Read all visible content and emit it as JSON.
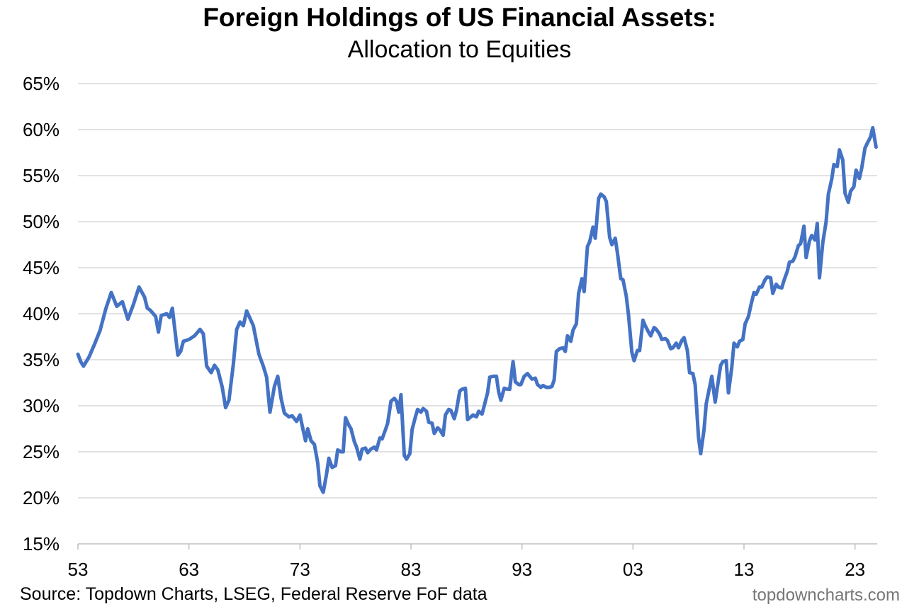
{
  "chart_data": {
    "type": "line",
    "title": "Foreign Holdings of US Financial Assets:",
    "subtitle": "Allocation to Equities",
    "xlabel": "",
    "ylabel": "",
    "ylim": [
      15,
      65
    ],
    "xlim": [
      1953,
      2025
    ],
    "yticks": [
      15,
      20,
      25,
      30,
      35,
      40,
      45,
      50,
      55,
      60,
      65
    ],
    "ytick_labels": [
      "15%",
      "20%",
      "25%",
      "30%",
      "35%",
      "40%",
      "45%",
      "50%",
      "55%",
      "60%",
      "65%"
    ],
    "xticks": [
      1953,
      1963,
      1973,
      1983,
      1993,
      2003,
      2013,
      2023
    ],
    "xtick_labels": [
      "53",
      "63",
      "73",
      "83",
      "93",
      "03",
      "13",
      "23"
    ],
    "grid": true,
    "series": [
      {
        "name": "Allocation to Equities",
        "color": "#4472C4",
        "points": [
          [
            1953.0,
            35.6
          ],
          [
            1953.25,
            34.8
          ],
          [
            1953.5,
            34.3
          ],
          [
            1954.0,
            35.3
          ],
          [
            1954.5,
            36.7
          ],
          [
            1955.0,
            38.2
          ],
          [
            1955.5,
            40.5
          ],
          [
            1956.0,
            42.3
          ],
          [
            1956.5,
            40.8
          ],
          [
            1957.0,
            41.3
          ],
          [
            1957.5,
            39.4
          ],
          [
            1958.0,
            41.0
          ],
          [
            1958.5,
            42.9
          ],
          [
            1959.0,
            41.8
          ],
          [
            1959.25,
            40.6
          ],
          [
            1959.5,
            40.4
          ],
          [
            1960.0,
            39.7
          ],
          [
            1960.25,
            38.0
          ],
          [
            1960.5,
            39.8
          ],
          [
            1961.0,
            40.0
          ],
          [
            1961.25,
            39.6
          ],
          [
            1961.5,
            40.6
          ],
          [
            1962.0,
            35.5
          ],
          [
            1962.25,
            35.9
          ],
          [
            1962.5,
            37.0
          ],
          [
            1963.0,
            37.2
          ],
          [
            1963.5,
            37.6
          ],
          [
            1964.0,
            38.3
          ],
          [
            1964.3,
            37.8
          ],
          [
            1964.6,
            34.3
          ],
          [
            1965.0,
            33.6
          ],
          [
            1965.3,
            34.4
          ],
          [
            1965.6,
            33.9
          ],
          [
            1966.0,
            32.0
          ],
          [
            1966.3,
            29.8
          ],
          [
            1966.6,
            30.6
          ],
          [
            1967.0,
            34.5
          ],
          [
            1967.3,
            38.3
          ],
          [
            1967.6,
            39.1
          ],
          [
            1967.9,
            38.7
          ],
          [
            1968.2,
            40.3
          ],
          [
            1968.5,
            39.5
          ],
          [
            1968.8,
            38.7
          ],
          [
            1969.3,
            35.6
          ],
          [
            1969.7,
            34.3
          ],
          [
            1970.0,
            33.1
          ],
          [
            1970.3,
            29.3
          ],
          [
            1970.7,
            32.1
          ],
          [
            1971.0,
            33.2
          ],
          [
            1971.3,
            30.8
          ],
          [
            1971.6,
            29.2
          ],
          [
            1972.0,
            28.8
          ],
          [
            1972.3,
            28.9
          ],
          [
            1972.7,
            28.3
          ],
          [
            1973.0,
            29.0
          ],
          [
            1973.3,
            27.3
          ],
          [
            1973.5,
            26.2
          ],
          [
            1973.7,
            27.5
          ],
          [
            1974.0,
            26.2
          ],
          [
            1974.3,
            25.8
          ],
          [
            1974.6,
            23.8
          ],
          [
            1974.8,
            21.3
          ],
          [
            1975.1,
            20.6
          ],
          [
            1975.4,
            22.6
          ],
          [
            1975.6,
            24.3
          ],
          [
            1975.9,
            23.3
          ],
          [
            1976.2,
            23.5
          ],
          [
            1976.4,
            25.2
          ],
          [
            1976.7,
            25.0
          ],
          [
            1976.9,
            25.0
          ],
          [
            1977.1,
            28.7
          ],
          [
            1977.4,
            27.9
          ],
          [
            1977.6,
            27.5
          ],
          [
            1977.9,
            26.1
          ],
          [
            1978.1,
            25.5
          ],
          [
            1978.4,
            24.2
          ],
          [
            1978.6,
            25.3
          ],
          [
            1978.9,
            25.4
          ],
          [
            1979.1,
            24.9
          ],
          [
            1979.4,
            25.3
          ],
          [
            1979.7,
            25.5
          ],
          [
            1979.9,
            25.2
          ],
          [
            1980.2,
            26.5
          ],
          [
            1980.4,
            26.4
          ],
          [
            1980.7,
            27.4
          ],
          [
            1980.9,
            28.1
          ],
          [
            1981.2,
            30.5
          ],
          [
            1981.5,
            30.8
          ],
          [
            1981.7,
            30.5
          ],
          [
            1981.9,
            29.3
          ],
          [
            1982.1,
            31.2
          ],
          [
            1982.4,
            24.6
          ],
          [
            1982.6,
            24.2
          ],
          [
            1982.9,
            24.8
          ],
          [
            1983.1,
            27.4
          ],
          [
            1983.4,
            28.8
          ],
          [
            1983.6,
            29.6
          ],
          [
            1983.9,
            29.3
          ],
          [
            1984.1,
            29.7
          ],
          [
            1984.4,
            29.4
          ],
          [
            1984.6,
            28.2
          ],
          [
            1984.9,
            28.1
          ],
          [
            1985.1,
            27.0
          ],
          [
            1985.4,
            27.6
          ],
          [
            1985.6,
            27.4
          ],
          [
            1985.9,
            26.8
          ],
          [
            1986.1,
            29.0
          ],
          [
            1986.4,
            29.6
          ],
          [
            1986.6,
            29.5
          ],
          [
            1986.9,
            28.6
          ],
          [
            1987.1,
            29.5
          ],
          [
            1987.4,
            31.6
          ],
          [
            1987.6,
            31.8
          ],
          [
            1987.9,
            31.9
          ],
          [
            1988.1,
            28.5
          ],
          [
            1988.4,
            28.8
          ],
          [
            1988.6,
            29.0
          ],
          [
            1988.9,
            28.8
          ],
          [
            1989.1,
            29.4
          ],
          [
            1989.4,
            29.1
          ],
          [
            1989.6,
            30.0
          ],
          [
            1989.9,
            31.4
          ],
          [
            1990.1,
            33.1
          ],
          [
            1990.4,
            33.2
          ],
          [
            1990.7,
            33.2
          ],
          [
            1990.9,
            31.5
          ],
          [
            1991.1,
            30.6
          ],
          [
            1991.4,
            31.9
          ],
          [
            1991.7,
            31.8
          ],
          [
            1991.9,
            31.8
          ],
          [
            1992.2,
            34.8
          ],
          [
            1992.4,
            32.6
          ],
          [
            1992.7,
            32.3
          ],
          [
            1992.9,
            32.3
          ],
          [
            1993.2,
            33.2
          ],
          [
            1993.5,
            33.5
          ],
          [
            1993.7,
            33.2
          ],
          [
            1993.9,
            32.9
          ],
          [
            1994.2,
            33.0
          ],
          [
            1994.4,
            32.3
          ],
          [
            1994.7,
            32.0
          ],
          [
            1994.9,
            32.2
          ],
          [
            1995.2,
            32.0
          ],
          [
            1995.5,
            32.0
          ],
          [
            1995.7,
            32.1
          ],
          [
            1995.9,
            32.8
          ],
          [
            1996.1,
            35.9
          ],
          [
            1996.4,
            36.2
          ],
          [
            1996.7,
            36.3
          ],
          [
            1996.9,
            35.9
          ],
          [
            1997.1,
            37.6
          ],
          [
            1997.4,
            37.0
          ],
          [
            1997.6,
            38.2
          ],
          [
            1997.9,
            38.9
          ],
          [
            1998.1,
            42.2
          ],
          [
            1998.4,
            43.8
          ],
          [
            1998.6,
            42.4
          ],
          [
            1998.9,
            47.3
          ],
          [
            1999.1,
            47.8
          ],
          [
            1999.4,
            49.4
          ],
          [
            1999.6,
            48.2
          ],
          [
            1999.9,
            52.5
          ],
          [
            2000.1,
            53.0
          ],
          [
            2000.4,
            52.7
          ],
          [
            2000.6,
            52.2
          ],
          [
            2000.9,
            48.3
          ],
          [
            2001.1,
            47.5
          ],
          [
            2001.4,
            48.2
          ],
          [
            2001.6,
            46.6
          ],
          [
            2001.9,
            43.8
          ],
          [
            2002.1,
            43.7
          ],
          [
            2002.4,
            41.9
          ],
          [
            2002.6,
            39.8
          ],
          [
            2002.9,
            35.8
          ],
          [
            2003.1,
            34.9
          ],
          [
            2003.4,
            36.0
          ],
          [
            2003.6,
            36.0
          ],
          [
            2003.9,
            39.3
          ],
          [
            2004.1,
            38.7
          ],
          [
            2004.4,
            38.0
          ],
          [
            2004.6,
            37.6
          ],
          [
            2004.9,
            38.5
          ],
          [
            2005.1,
            38.3
          ],
          [
            2005.4,
            37.8
          ],
          [
            2005.6,
            37.2
          ],
          [
            2005.9,
            37.3
          ],
          [
            2006.1,
            37.1
          ],
          [
            2006.4,
            36.2
          ],
          [
            2006.6,
            36.3
          ],
          [
            2006.9,
            36.8
          ],
          [
            2007.1,
            36.3
          ],
          [
            2007.4,
            37.1
          ],
          [
            2007.6,
            37.4
          ],
          [
            2007.9,
            36.0
          ],
          [
            2008.1,
            33.6
          ],
          [
            2008.4,
            33.5
          ],
          [
            2008.6,
            32.3
          ],
          [
            2008.9,
            26.6
          ],
          [
            2009.1,
            24.8
          ],
          [
            2009.4,
            27.4
          ],
          [
            2009.6,
            30.2
          ],
          [
            2009.9,
            32.0
          ],
          [
            2010.1,
            33.2
          ],
          [
            2010.4,
            30.4
          ],
          [
            2010.6,
            32.0
          ],
          [
            2010.9,
            34.4
          ],
          [
            2011.1,
            34.8
          ],
          [
            2011.4,
            34.9
          ],
          [
            2011.6,
            31.4
          ],
          [
            2011.9,
            34.2
          ],
          [
            2012.1,
            36.8
          ],
          [
            2012.4,
            36.4
          ],
          [
            2012.6,
            37.0
          ],
          [
            2012.9,
            37.2
          ],
          [
            2013.1,
            38.9
          ],
          [
            2013.4,
            39.7
          ],
          [
            2013.6,
            40.8
          ],
          [
            2013.9,
            42.3
          ],
          [
            2014.1,
            42.1
          ],
          [
            2014.4,
            42.9
          ],
          [
            2014.6,
            42.9
          ],
          [
            2014.9,
            43.7
          ],
          [
            2015.1,
            44.0
          ],
          [
            2015.4,
            43.9
          ],
          [
            2015.6,
            42.2
          ],
          [
            2015.9,
            43.2
          ],
          [
            2016.1,
            42.9
          ],
          [
            2016.4,
            42.8
          ],
          [
            2016.6,
            43.6
          ],
          [
            2016.9,
            44.6
          ],
          [
            2017.1,
            45.6
          ],
          [
            2017.4,
            45.7
          ],
          [
            2017.6,
            46.2
          ],
          [
            2017.9,
            47.4
          ],
          [
            2018.1,
            47.6
          ],
          [
            2018.4,
            49.5
          ],
          [
            2018.6,
            46.1
          ],
          [
            2018.9,
            47.9
          ],
          [
            2019.1,
            48.5
          ],
          [
            2019.4,
            48.0
          ],
          [
            2019.6,
            49.8
          ],
          [
            2019.8,
            43.9
          ],
          [
            2020.1,
            47.7
          ],
          [
            2020.4,
            50.0
          ],
          [
            2020.6,
            53.0
          ],
          [
            2020.9,
            54.6
          ],
          [
            2021.1,
            56.2
          ],
          [
            2021.4,
            56.0
          ],
          [
            2021.6,
            57.8
          ],
          [
            2021.9,
            56.7
          ],
          [
            2022.1,
            53.1
          ],
          [
            2022.4,
            52.1
          ],
          [
            2022.6,
            53.3
          ],
          [
            2022.9,
            53.8
          ],
          [
            2023.1,
            55.6
          ],
          [
            2023.4,
            54.7
          ],
          [
            2023.6,
            55.8
          ],
          [
            2023.9,
            58.0
          ],
          [
            2024.1,
            58.5
          ],
          [
            2024.4,
            59.2
          ],
          [
            2024.6,
            60.2
          ],
          [
            2024.9,
            58.1
          ]
        ]
      }
    ]
  },
  "footer": {
    "source": "Source: Topdown Charts, LSEG, Federal Reserve FoF data",
    "credit": "topdowncharts.com"
  }
}
